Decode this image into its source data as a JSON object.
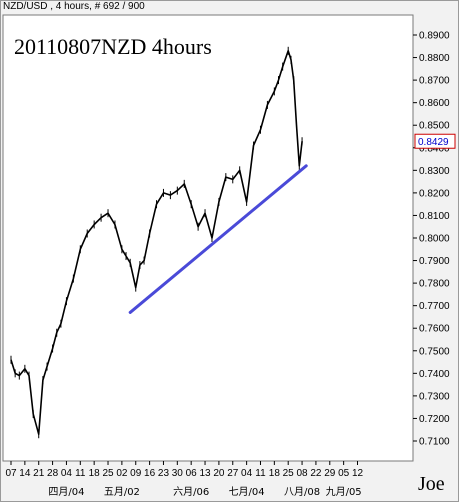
{
  "header": {
    "symbol_line": "NZD/USD , 4 hours, # 692 / 900"
  },
  "overlay": {
    "title": "20110807NZD 4hours",
    "watermark": "Joe"
  },
  "price_label": "0.8429",
  "colors": {
    "price": "#000000",
    "trendline": "#4a4ad8",
    "price_label_border": "#cc0000",
    "price_label_text": "#0000cc",
    "plot_bg": "#ffffff",
    "frame_bg": "#f2f2f2"
  },
  "chart_data": {
    "type": "line",
    "title": "20110807NZD 4hours",
    "subtitle": "NZD/USD , 4 hours, # 692 / 900",
    "y_axis_position": "right",
    "ylim": [
      0.704,
      0.894
    ],
    "y_ticks": [
      "0.8900",
      "0.8800",
      "0.8700",
      "0.8600",
      "0.8500",
      "0.8400",
      "0.8300",
      "0.8200",
      "0.8100",
      "0.8000",
      "0.7900",
      "0.7800",
      "0.7700",
      "0.7600",
      "0.7500",
      "0.7400",
      "0.7300",
      "0.7200",
      "0.7100"
    ],
    "x_ticks": [
      "07",
      "14",
      "21",
      "28",
      "04",
      "11",
      "18",
      "25",
      "02",
      "09",
      "16",
      "23",
      "30",
      "06",
      "13",
      "20",
      "27",
      "04",
      "11",
      "18",
      "25",
      "08",
      "22",
      "29",
      "05",
      "12"
    ],
    "x_month_labels": [
      {
        "label": "四月/04",
        "at_tick": 4
      },
      {
        "label": "五月/02",
        "at_tick": 8
      },
      {
        "label": "六月/06",
        "at_tick": 13
      },
      {
        "label": "七月/04",
        "at_tick": 17
      },
      {
        "label": "八月/08",
        "at_tick": 21
      },
      {
        "label": "九月/05",
        "at_tick": 24
      }
    ],
    "series": [
      {
        "tick": [
          0,
          0.3,
          0.6,
          1.0,
          1.3,
          1.6,
          2.0,
          2.3,
          2.6,
          3.0,
          3.3,
          3.6,
          4.0,
          4.5,
          5.0,
          5.5,
          6.0,
          6.5,
          7.0,
          7.5,
          8.0,
          8.3,
          8.6,
          9.0,
          9.3,
          9.6,
          10.0,
          10.5,
          11.0,
          11.5,
          12.0,
          12.5,
          13.0,
          13.5,
          14.0,
          14.5,
          15.0,
          15.5,
          16.0,
          16.5,
          17.0,
          17.5,
          18.0,
          18.5,
          19.0,
          19.3,
          19.6,
          20.0,
          20.2,
          20.4,
          20.6,
          20.8,
          21.0
        ],
        "values": [
          0.746,
          0.74,
          0.739,
          0.742,
          0.739,
          0.722,
          0.713,
          0.737,
          0.743,
          0.751,
          0.758,
          0.762,
          0.772,
          0.782,
          0.795,
          0.802,
          0.806,
          0.809,
          0.811,
          0.806,
          0.795,
          0.792,
          0.789,
          0.778,
          0.788,
          0.79,
          0.802,
          0.815,
          0.82,
          0.819,
          0.821,
          0.824,
          0.815,
          0.805,
          0.811,
          0.8,
          0.816,
          0.827,
          0.826,
          0.83,
          0.816,
          0.841,
          0.848,
          0.859,
          0.865,
          0.87,
          0.876,
          0.883,
          0.879,
          0.87,
          0.85,
          0.832,
          0.8429
        ]
      }
    ],
    "trendline": {
      "from": {
        "tick": 8.6,
        "value": 0.767
      },
      "to": {
        "tick": 21.3,
        "value": 0.832
      }
    }
  }
}
